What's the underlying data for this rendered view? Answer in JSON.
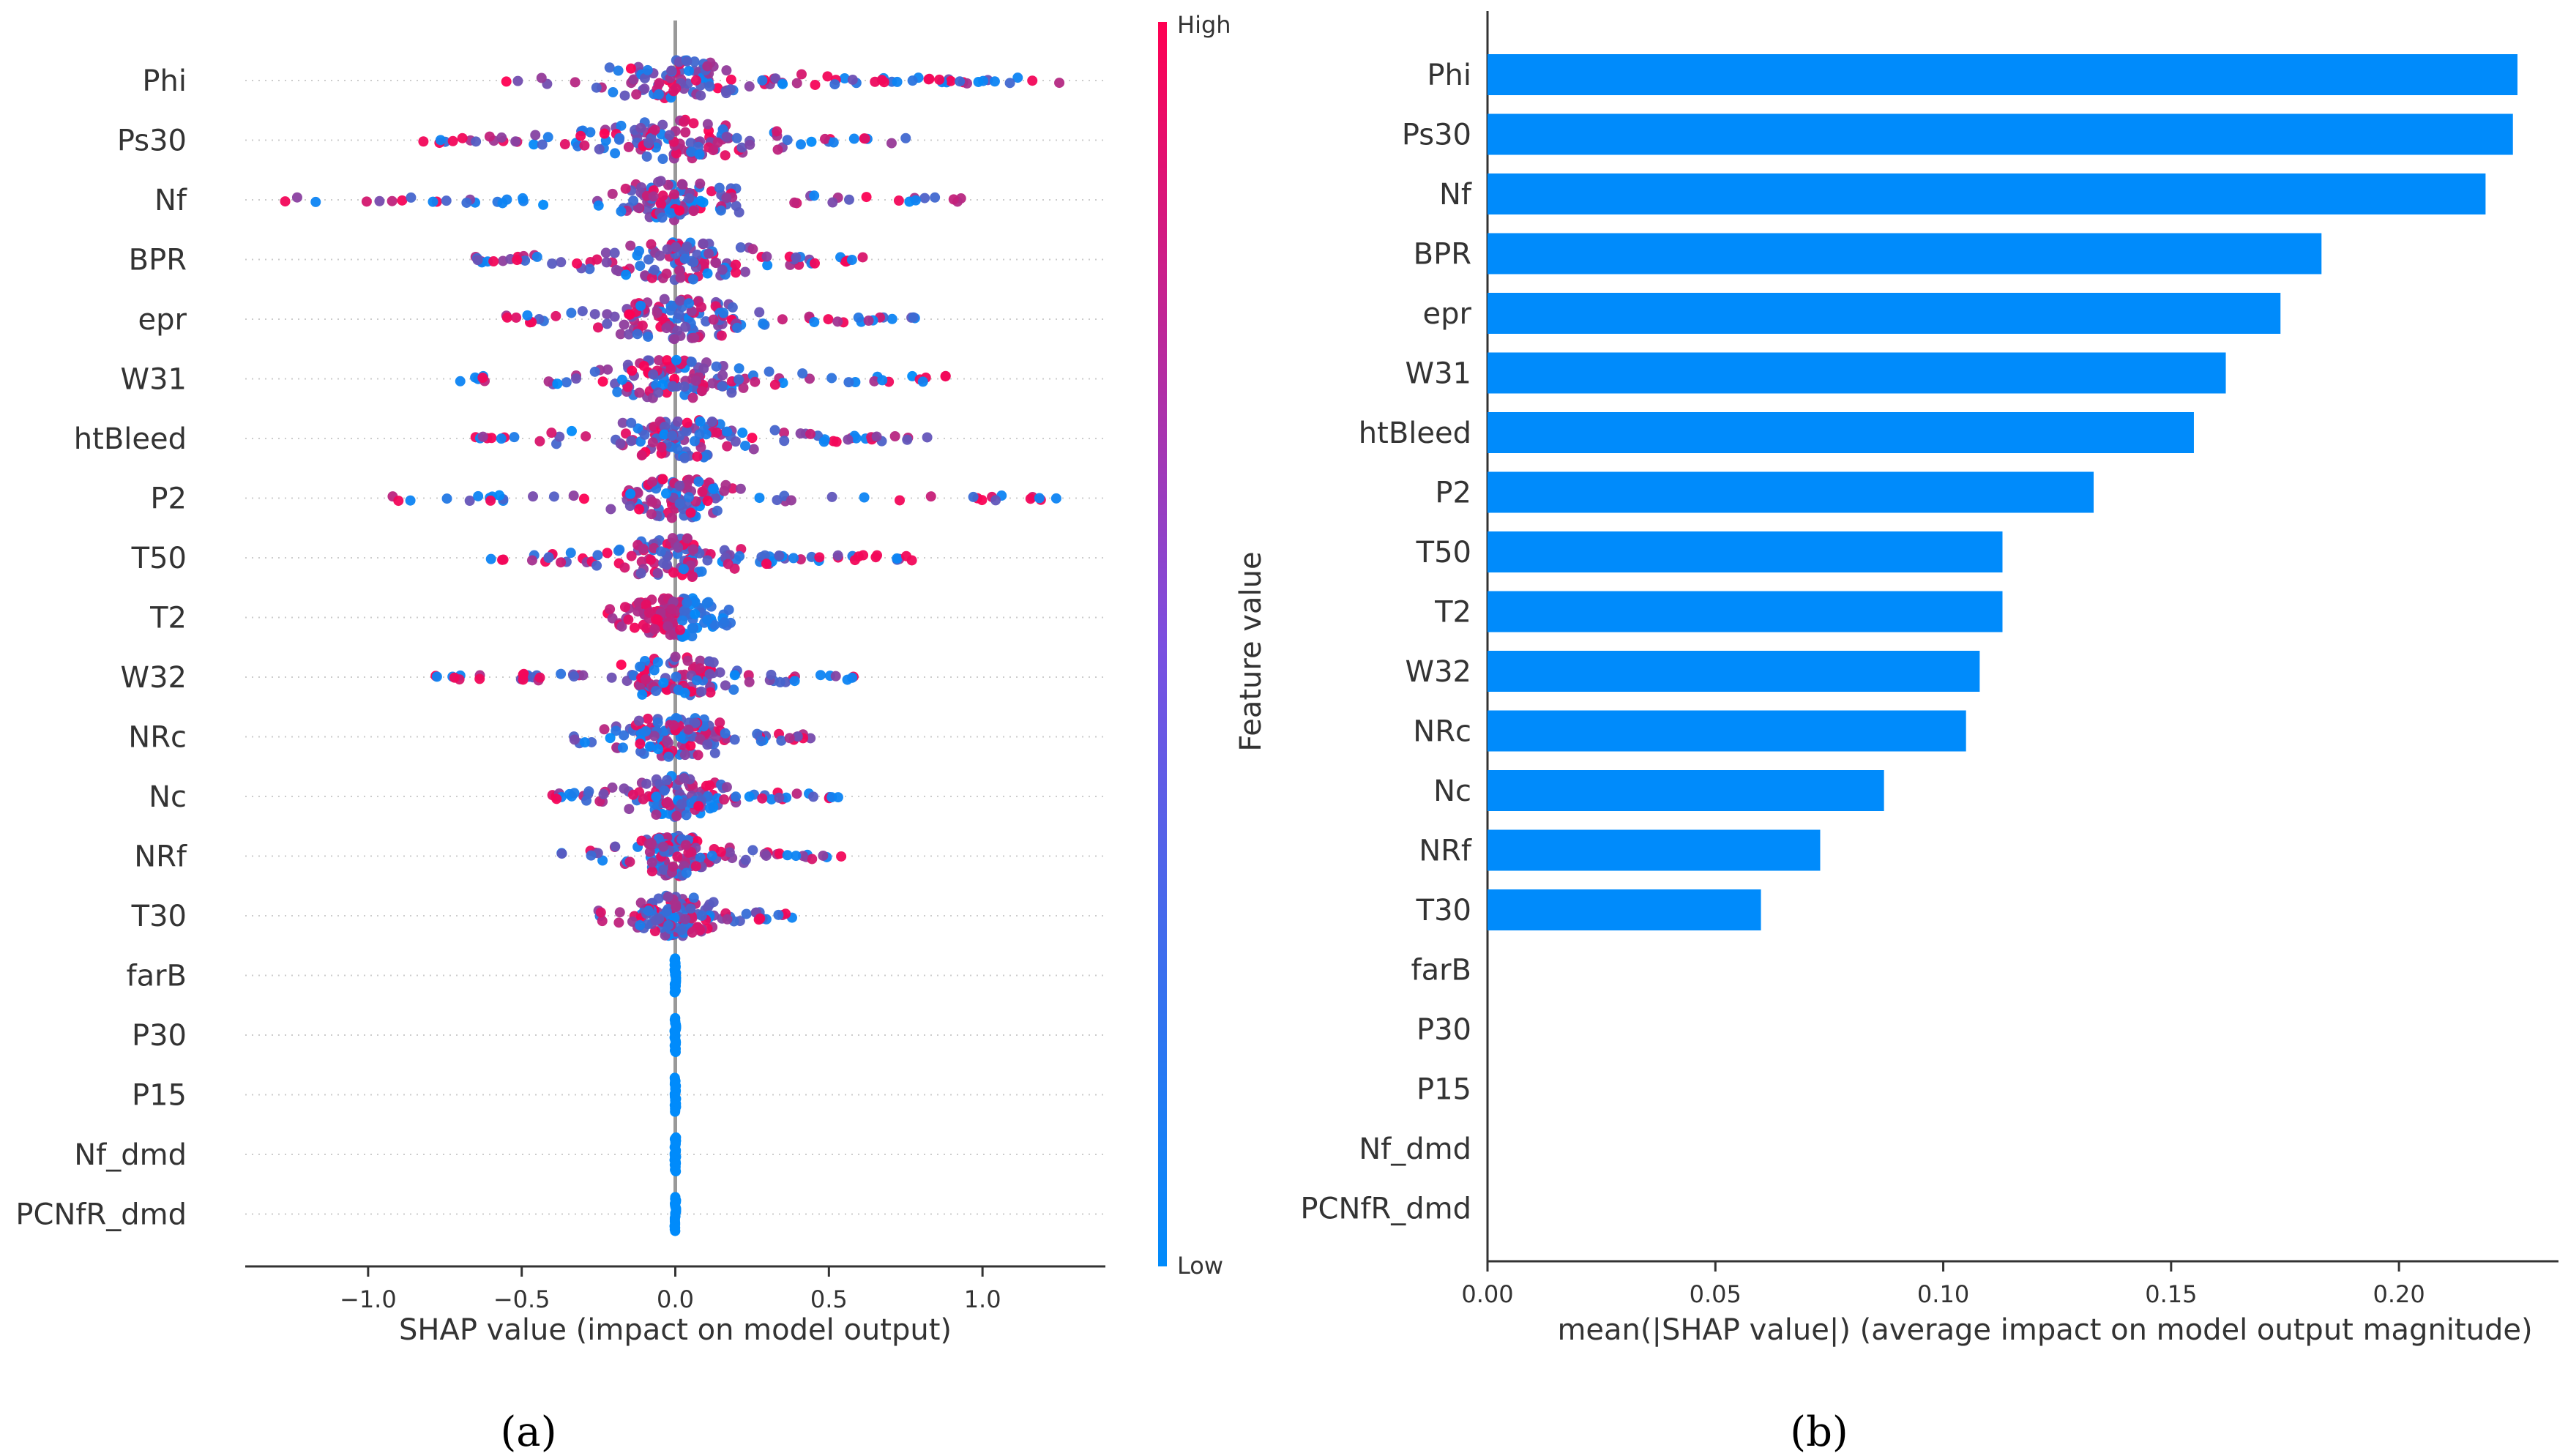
{
  "figure": {
    "panel_a_label": "(a)",
    "panel_b_label": "(b)"
  },
  "colors": {
    "low": "#008bfb",
    "high": "#ff0052",
    "bar": "#008bfb",
    "axis": "#333333",
    "zero_line": "#999999",
    "row_guide": "#cccccc"
  },
  "chart_data": [
    {
      "type": "scatter",
      "variant": "shap-beeswarm",
      "features": [
        "Phi",
        "Ps30",
        "Nf",
        "BPR",
        "epr",
        "W31",
        "htBleed",
        "P2",
        "T50",
        "T2",
        "W32",
        "NRc",
        "Nc",
        "NRf",
        "T30",
        "farB",
        "P30",
        "P15",
        "Nf_dmd",
        "PCNfR_dmd"
      ],
      "xlabel": "SHAP value (impact on model output)",
      "xlim": [
        -1.4,
        1.4
      ],
      "xticks": [
        -1.0,
        -0.5,
        0.0,
        0.5,
        1.0
      ],
      "xtick_labels": [
        "−1.0",
        "−0.5",
        "0.0",
        "0.5",
        "1.0"
      ],
      "colorbar": {
        "label": "Feature value",
        "high_label": "High",
        "low_label": "Low"
      },
      "feature_ranges": [
        {
          "feature": "Phi",
          "min": -0.55,
          "max": 1.25,
          "core": 0.32
        },
        {
          "feature": "Ps30",
          "min": -0.82,
          "max": 0.75,
          "core": 0.35
        },
        {
          "feature": "Nf",
          "min": -1.27,
          "max": 0.93,
          "core": 0.3
        },
        {
          "feature": "BPR",
          "min": -0.65,
          "max": 0.61,
          "core": 0.3
        },
        {
          "feature": "epr",
          "min": -0.55,
          "max": 0.78,
          "core": 0.3
        },
        {
          "feature": "W31",
          "min": -0.7,
          "max": 0.88,
          "core": 0.3
        },
        {
          "feature": "htBleed",
          "min": -0.65,
          "max": 0.82,
          "core": 0.3
        },
        {
          "feature": "P2",
          "min": -0.92,
          "max": 1.24,
          "core": 0.25
        },
        {
          "feature": "T50",
          "min": -0.6,
          "max": 0.77,
          "core": 0.25
        },
        {
          "feature": "T2",
          "min": -0.22,
          "max": 0.18,
          "core": 0.2
        },
        {
          "feature": "W32",
          "min": -0.78,
          "max": 0.58,
          "core": 0.25
        },
        {
          "feature": "NRc",
          "min": -0.33,
          "max": 0.44,
          "core": 0.25
        },
        {
          "feature": "Nc",
          "min": -0.4,
          "max": 0.53,
          "core": 0.2
        },
        {
          "feature": "NRf",
          "min": -0.37,
          "max": 0.54,
          "core": 0.2
        },
        {
          "feature": "T30",
          "min": -0.25,
          "max": 0.38,
          "core": 0.18
        },
        {
          "feature": "farB",
          "min": 0.0,
          "max": 0.0,
          "core": 0.0
        },
        {
          "feature": "P30",
          "min": 0.0,
          "max": 0.0,
          "core": 0.0
        },
        {
          "feature": "P15",
          "min": 0.0,
          "max": 0.0,
          "core": 0.0
        },
        {
          "feature": "Nf_dmd",
          "min": 0.0,
          "max": 0.0,
          "core": 0.0
        },
        {
          "feature": "PCNfR_dmd",
          "min": 0.0,
          "max": 0.0,
          "core": 0.0
        }
      ]
    },
    {
      "type": "bar",
      "orientation": "horizontal",
      "categories": [
        "Phi",
        "Ps30",
        "Nf",
        "BPR",
        "epr",
        "W31",
        "htBleed",
        "P2",
        "T50",
        "T2",
        "W32",
        "NRc",
        "Nc",
        "NRf",
        "T30",
        "farB",
        "P30",
        "P15",
        "Nf_dmd",
        "PCNfR_dmd"
      ],
      "values": [
        0.226,
        0.225,
        0.219,
        0.183,
        0.174,
        0.162,
        0.155,
        0.133,
        0.113,
        0.113,
        0.108,
        0.105,
        0.087,
        0.073,
        0.06,
        0.0,
        0.0,
        0.0,
        0.0,
        0.0
      ],
      "xlabel": "mean(|SHAP value|) (average impact on model output magnitude)",
      "xlim": [
        0,
        0.235
      ],
      "xticks": [
        0.0,
        0.05,
        0.1,
        0.15,
        0.2
      ],
      "xtick_labels": [
        "0.00",
        "0.05",
        "0.10",
        "0.15",
        "0.20"
      ]
    }
  ]
}
